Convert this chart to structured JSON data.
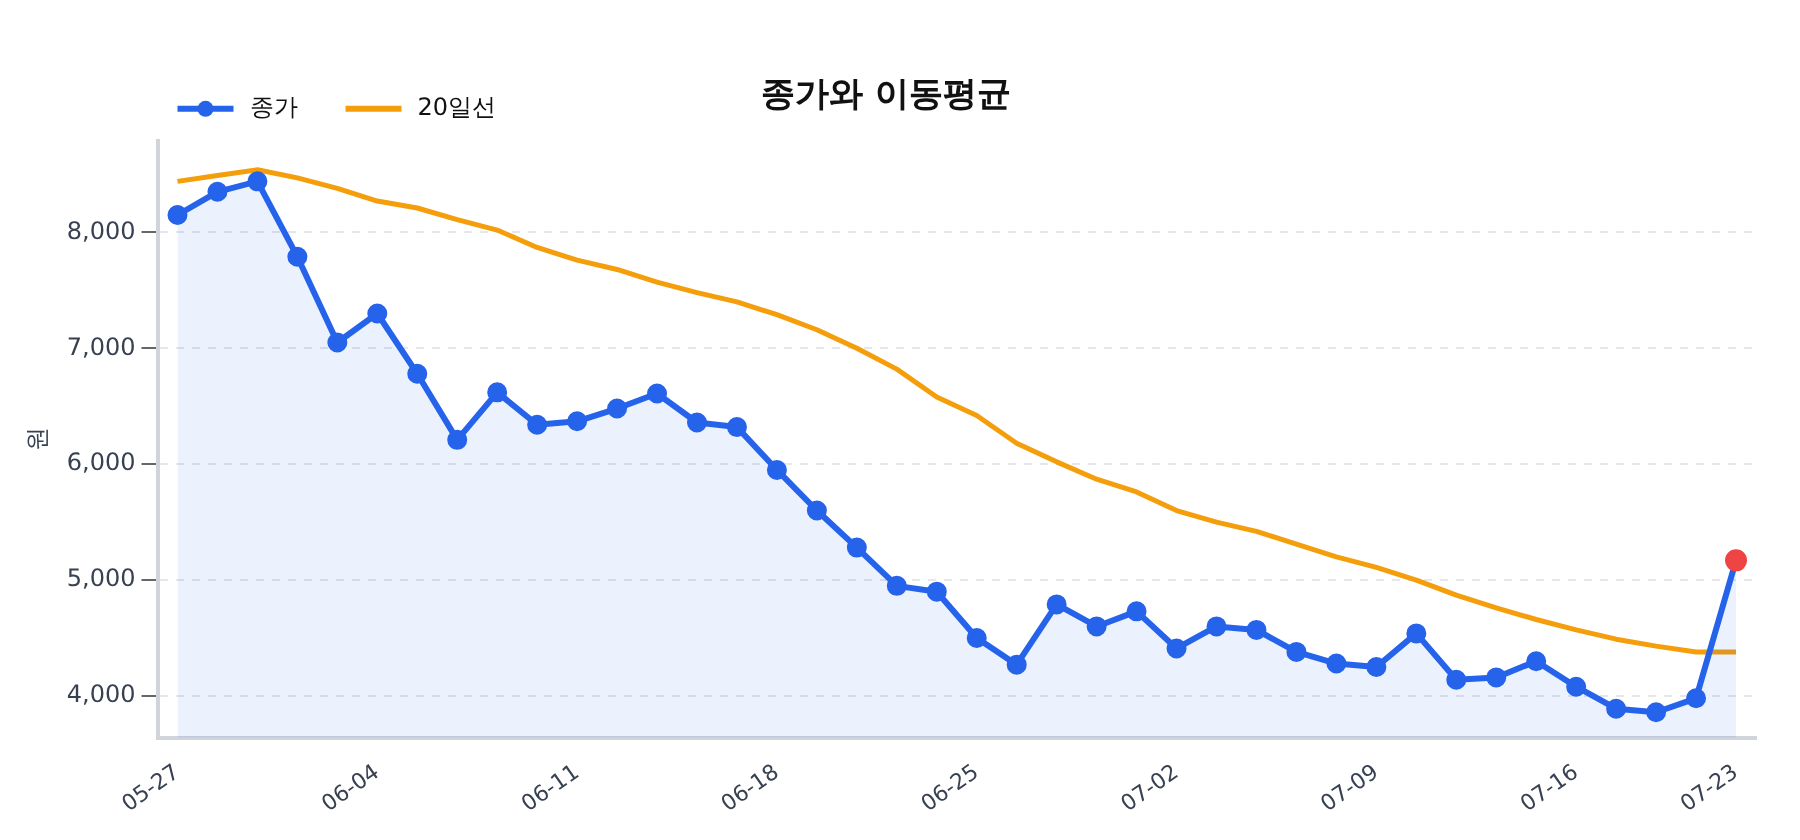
{
  "chart_data": {
    "type": "line",
    "title": "종가와 이동평균",
    "ylabel": "원",
    "categories": [
      "05-27",
      null,
      null,
      null,
      null,
      "06-04",
      null,
      null,
      null,
      null,
      "06-11",
      null,
      null,
      null,
      null,
      "06-18",
      null,
      null,
      null,
      null,
      "06-25",
      null,
      null,
      null,
      null,
      "07-02",
      null,
      null,
      null,
      null,
      "07-09",
      null,
      null,
      null,
      null,
      "07-16",
      null,
      null,
      null,
      "07-23"
    ],
    "series": [
      {
        "name": "종가",
        "type": "area",
        "color": "#2563eb",
        "marker": "circle",
        "values": [
          8150,
          8350,
          8440,
          7790,
          7050,
          7300,
          6780,
          6210,
          6620,
          6340,
          6370,
          6480,
          6610,
          6360,
          6320,
          5950,
          5600,
          5280,
          4950,
          4900,
          4500,
          4270,
          4790,
          4600,
          4730,
          4410,
          4600,
          4570,
          4380,
          4280,
          4250,
          4540,
          4140,
          4160,
          4300,
          4080,
          3890,
          3860,
          3980,
          5170
        ]
      },
      {
        "name": "20일선",
        "color": "#f59e0b",
        "marker": "none",
        "values": [
          8440,
          8490,
          8540,
          8470,
          8380,
          8270,
          8210,
          8110,
          8020,
          7870,
          7760,
          7680,
          7570,
          7480,
          7400,
          7290,
          7160,
          7000,
          6820,
          6580,
          6420,
          6180,
          6020,
          5870,
          5760,
          5600,
          5500,
          5420,
          5310,
          5200,
          5110,
          5000,
          4870,
          4760,
          4660,
          4570,
          4490,
          4430,
          4380,
          4380
        ]
      },
      {
        "type": "scatter",
        "color": "#ef4444",
        "marker": "circle",
        "values": [
          null,
          null,
          null,
          null,
          null,
          null,
          null,
          null,
          null,
          null,
          null,
          null,
          null,
          null,
          null,
          null,
          null,
          null,
          null,
          null,
          null,
          null,
          null,
          null,
          null,
          null,
          null,
          null,
          null,
          null,
          null,
          null,
          null,
          null,
          null,
          null,
          null,
          null,
          null,
          5170
        ]
      }
    ],
    "ylim": [
      3640,
      8790
    ],
    "yticks": [
      {
        "value": 4000,
        "label": "4,000"
      },
      {
        "value": 5000,
        "label": "5,000"
      },
      {
        "value": 6000,
        "label": "6,000"
      },
      {
        "value": 7000,
        "label": "7,000"
      },
      {
        "value": 8000,
        "label": "8,000"
      }
    ],
    "grid": "y",
    "legend": "top left"
  }
}
